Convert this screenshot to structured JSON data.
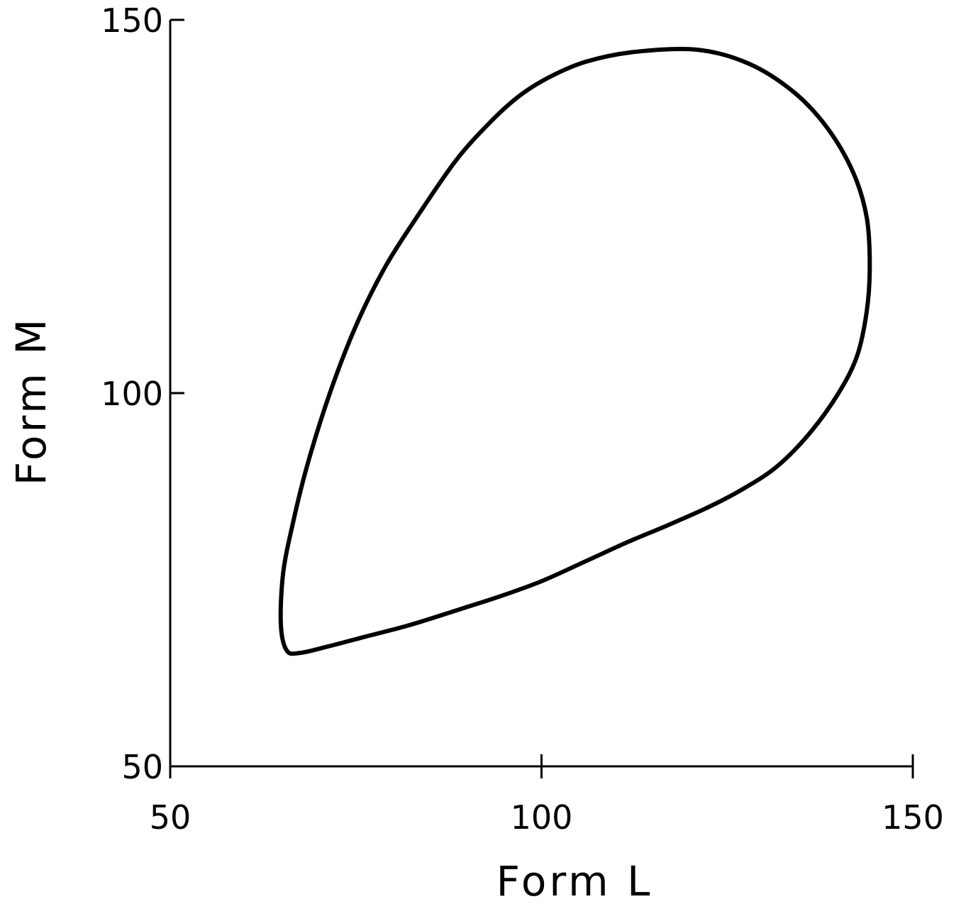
{
  "chart_data": {
    "type": "line",
    "title": "",
    "xlabel": "Form L",
    "ylabel": "Form M",
    "xlim": [
      50,
      150
    ],
    "ylim": [
      50,
      150
    ],
    "xticks": [
      50,
      100,
      150
    ],
    "yticks": [
      50,
      100,
      150
    ],
    "xtick_labels": [
      "50",
      "100",
      "150"
    ],
    "ytick_labels": [
      "50",
      "100",
      "150"
    ],
    "grid": false,
    "legend": "none",
    "closed": true,
    "series": [
      {
        "color": "#000000",
        "x": [
          65.7,
          67.5,
          71.0,
          76.0,
          82.5,
          89.5,
          94.5,
          100.0,
          106.0,
          111.5,
          117.0,
          122.0,
          126.5,
          131.5,
          136.0,
          140.0,
          142.5,
          143.8,
          144.2,
          143.8,
          142.0,
          138.5,
          134.0,
          128.0,
          121.0,
          112.5,
          106.0,
          101.0,
          97.0,
          93.0,
          88.5,
          83.5,
          79.0,
          75.0,
          71.5,
          68.5,
          66.5,
          65.2,
          64.9,
          65.7
        ],
        "y": [
          65.5,
          65.2,
          66.0,
          67.3,
          69.0,
          71.2,
          72.8,
          74.8,
          77.5,
          80.0,
          82.3,
          84.5,
          86.8,
          90.0,
          94.5,
          100.0,
          105.0,
          111.0,
          117.0,
          123.5,
          129.5,
          135.5,
          140.3,
          144.1,
          146.0,
          145.7,
          144.4,
          142.3,
          139.8,
          136.2,
          131.2,
          124.0,
          117.0,
          109.0,
          100.0,
          90.5,
          82.5,
          75.8,
          69.0,
          65.5
        ]
      }
    ]
  }
}
